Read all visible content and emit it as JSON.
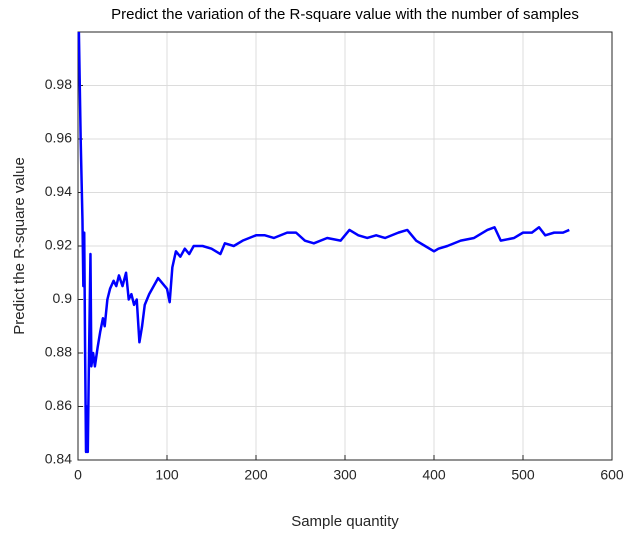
{
  "chart_data": {
    "type": "line",
    "title": "Predict the variation of the R-square value with the number of samples",
    "xlabel": "Sample quantity",
    "ylabel": "Predict the R-square value",
    "grid": true,
    "xlim": [
      0,
      600
    ],
    "xticks": [
      0,
      100,
      200,
      300,
      400,
      500,
      600
    ],
    "ylim": [
      0.84,
      1.0
    ],
    "yticks": [
      0.84,
      0.86,
      0.88,
      0.9,
      0.92,
      0.94,
      0.96,
      0.98
    ],
    "series": [
      {
        "color": "#0000ff",
        "x": [
          1,
          3,
          5,
          6,
          7,
          8,
          9,
          10,
          11,
          12,
          14,
          15,
          17,
          19,
          22,
          25,
          28,
          30,
          33,
          36,
          40,
          43,
          46,
          50,
          54,
          57,
          60,
          63,
          66,
          69,
          72,
          75,
          80,
          85,
          90,
          95,
          100,
          103,
          106,
          110,
          115,
          120,
          125,
          130,
          140,
          150,
          160,
          165,
          175,
          185,
          200,
          210,
          220,
          235,
          245,
          255,
          265,
          280,
          295,
          305,
          315,
          325,
          335,
          345,
          360,
          370,
          380,
          390,
          400,
          405,
          415,
          430,
          445,
          460,
          468,
          475,
          490,
          500,
          510,
          518,
          525,
          535,
          545,
          552
        ],
        "values": [
          1.0,
          0.96,
          0.93,
          0.905,
          0.925,
          0.88,
          0.843,
          0.86,
          0.843,
          0.87,
          0.917,
          0.875,
          0.88,
          0.875,
          0.882,
          0.888,
          0.893,
          0.89,
          0.9,
          0.904,
          0.907,
          0.905,
          0.909,
          0.905,
          0.91,
          0.9,
          0.902,
          0.898,
          0.9,
          0.884,
          0.89,
          0.898,
          0.902,
          0.905,
          0.908,
          0.906,
          0.904,
          0.899,
          0.912,
          0.918,
          0.916,
          0.919,
          0.917,
          0.92,
          0.92,
          0.919,
          0.917,
          0.921,
          0.92,
          0.922,
          0.924,
          0.924,
          0.923,
          0.925,
          0.925,
          0.922,
          0.921,
          0.923,
          0.922,
          0.926,
          0.924,
          0.923,
          0.924,
          0.923,
          0.925,
          0.926,
          0.922,
          0.92,
          0.918,
          0.919,
          0.92,
          0.922,
          0.923,
          0.926,
          0.927,
          0.922,
          0.923,
          0.925,
          0.925,
          0.927,
          0.924,
          0.925,
          0.925,
          0.926
        ]
      }
    ]
  }
}
